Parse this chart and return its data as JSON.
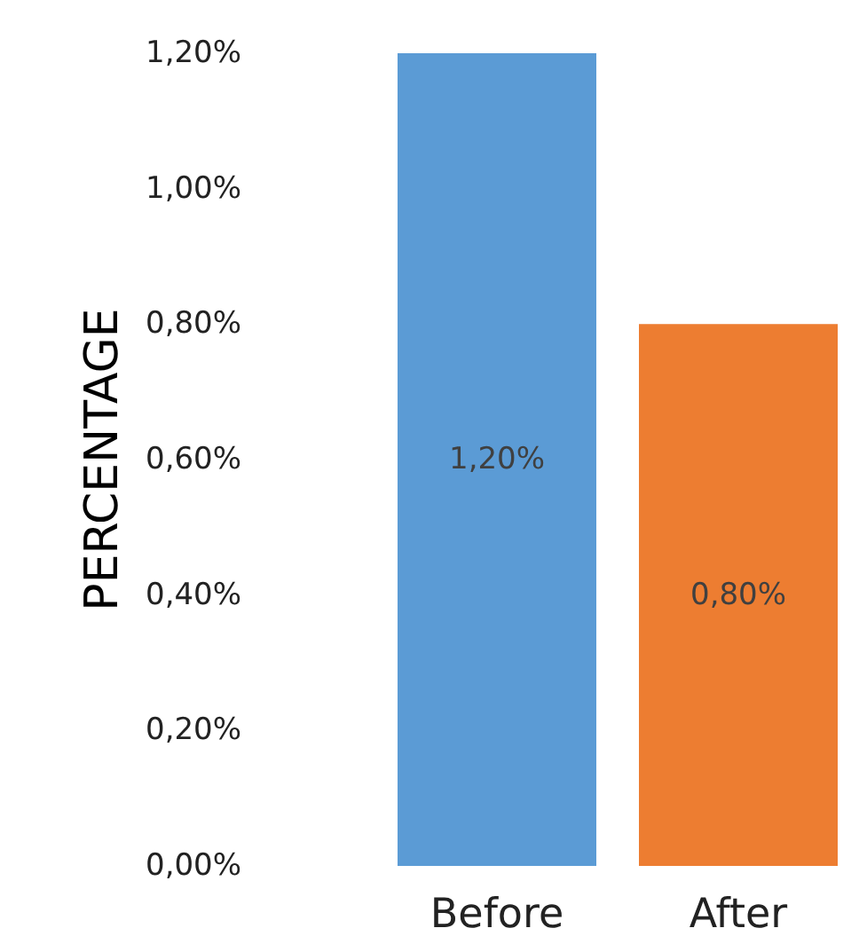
{
  "chart_data": {
    "type": "bar",
    "ylabel": "PERCENTAGE",
    "categories": [
      "Before",
      "After"
    ],
    "values": [
      1.2,
      0.8
    ],
    "colors": [
      "#5b9bd5",
      "#ed7d31"
    ],
    "value_labels": [
      "1,20%",
      "0,80%"
    ],
    "ylim": [
      0,
      1.2
    ],
    "yticks": [
      {
        "value": 0,
        "label": "0,00%"
      },
      {
        "value": 0.2,
        "label": "0,20%"
      },
      {
        "value": 0.4,
        "label": "0,40%"
      },
      {
        "value": 0.6,
        "label": "0,60%"
      },
      {
        "value": 0.8,
        "label": "0,80%"
      },
      {
        "value": 1.0,
        "label": "1,00%"
      },
      {
        "value": 1.2,
        "label": "1,20%"
      }
    ],
    "grid": false
  }
}
